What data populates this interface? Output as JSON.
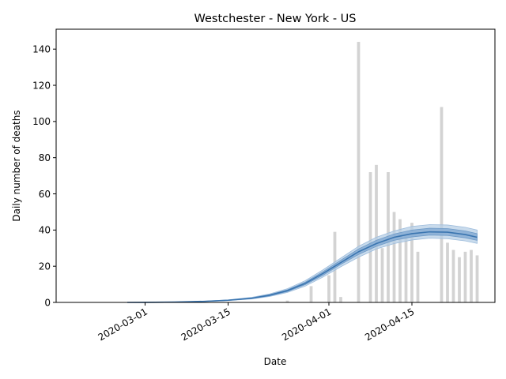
{
  "chart_data": {
    "type": "bar",
    "title": "Westchester - New York - US",
    "xlabel": "Date",
    "ylabel": "Daily number of deaths",
    "x_start": "2020-02-15",
    "x_end": "2020-04-29",
    "ylim": [
      0,
      151
    ],
    "yticks": [
      0,
      20,
      40,
      60,
      80,
      100,
      120,
      140
    ],
    "xticks": [
      "2020-03-01",
      "2020-03-15",
      "2020-04-01",
      "2020-04-15"
    ],
    "grid": false,
    "bars": [
      {
        "date": "2020-03-25",
        "value": 1
      },
      {
        "date": "2020-03-29",
        "value": 9
      },
      {
        "date": "2020-04-01",
        "value": 15
      },
      {
        "date": "2020-04-02",
        "value": 39
      },
      {
        "date": "2020-04-03",
        "value": 3
      },
      {
        "date": "2020-04-06",
        "value": 144
      },
      {
        "date": "2020-04-08",
        "value": 72
      },
      {
        "date": "2020-04-09",
        "value": 76
      },
      {
        "date": "2020-04-10",
        "value": 30
      },
      {
        "date": "2020-04-11",
        "value": 72
      },
      {
        "date": "2020-04-12",
        "value": 50
      },
      {
        "date": "2020-04-13",
        "value": 46
      },
      {
        "date": "2020-04-14",
        "value": 36
      },
      {
        "date": "2020-04-15",
        "value": 44
      },
      {
        "date": "2020-04-16",
        "value": 28
      },
      {
        "date": "2020-04-20",
        "value": 108
      },
      {
        "date": "2020-04-21",
        "value": 33
      },
      {
        "date": "2020-04-22",
        "value": 29
      },
      {
        "date": "2020-04-23",
        "value": 25
      },
      {
        "date": "2020-04-24",
        "value": 28
      },
      {
        "date": "2020-04-25",
        "value": 29
      },
      {
        "date": "2020-04-26",
        "value": 26
      }
    ],
    "fit_curve": {
      "color": "#3a75b0",
      "points": [
        {
          "date": "2020-02-27",
          "mid": 0,
          "inner_lo": 0,
          "inner_hi": 0,
          "outer_lo": 0,
          "outer_hi": 0
        },
        {
          "date": "2020-03-01",
          "mid": 0.05,
          "inner_lo": 0.05,
          "inner_hi": 0.05,
          "outer_lo": 0.04,
          "outer_hi": 0.06
        },
        {
          "date": "2020-03-06",
          "mid": 0.2,
          "inner_lo": 0.2,
          "inner_hi": 0.2,
          "outer_lo": 0.15,
          "outer_hi": 0.25
        },
        {
          "date": "2020-03-11",
          "mid": 0.6,
          "inner_lo": 0.55,
          "inner_hi": 0.65,
          "outer_lo": 0.5,
          "outer_hi": 0.7
        },
        {
          "date": "2020-03-15",
          "mid": 1.2,
          "inner_lo": 1.1,
          "inner_hi": 1.3,
          "outer_lo": 1.0,
          "outer_hi": 1.4
        },
        {
          "date": "2020-03-19",
          "mid": 2.3,
          "inner_lo": 2.1,
          "inner_hi": 2.5,
          "outer_lo": 1.9,
          "outer_hi": 2.8
        },
        {
          "date": "2020-03-22",
          "mid": 4,
          "inner_lo": 3.6,
          "inner_hi": 4.3,
          "outer_lo": 3.3,
          "outer_hi": 4.7
        },
        {
          "date": "2020-03-25",
          "mid": 6.5,
          "inner_lo": 6,
          "inner_hi": 7,
          "outer_lo": 5.5,
          "outer_hi": 7.6
        },
        {
          "date": "2020-03-28",
          "mid": 10.5,
          "inner_lo": 9.8,
          "inner_hi": 11.2,
          "outer_lo": 9,
          "outer_hi": 12
        },
        {
          "date": "2020-03-31",
          "mid": 16,
          "inner_lo": 15,
          "inner_hi": 17,
          "outer_lo": 14,
          "outer_hi": 18
        },
        {
          "date": "2020-04-03",
          "mid": 22,
          "inner_lo": 21,
          "inner_hi": 23.3,
          "outer_lo": 19.7,
          "outer_hi": 24.5
        },
        {
          "date": "2020-04-06",
          "mid": 28,
          "inner_lo": 26.5,
          "inner_hi": 29.5,
          "outer_lo": 25,
          "outer_hi": 31
        },
        {
          "date": "2020-04-09",
          "mid": 32.5,
          "inner_lo": 31,
          "inner_hi": 34.3,
          "outer_lo": 29.5,
          "outer_hi": 36
        },
        {
          "date": "2020-04-12",
          "mid": 36,
          "inner_lo": 34.3,
          "inner_hi": 37.8,
          "outer_lo": 32.5,
          "outer_hi": 39.5
        },
        {
          "date": "2020-04-15",
          "mid": 38,
          "inner_lo": 36.2,
          "inner_hi": 40,
          "outer_lo": 34.5,
          "outer_hi": 42
        },
        {
          "date": "2020-04-18",
          "mid": 39,
          "inner_lo": 37.2,
          "inner_hi": 41,
          "outer_lo": 35.5,
          "outer_hi": 43
        },
        {
          "date": "2020-04-21",
          "mid": 38.8,
          "inner_lo": 37,
          "inner_hi": 40.8,
          "outer_lo": 35.2,
          "outer_hi": 42.8
        },
        {
          "date": "2020-04-24",
          "mid": 37.5,
          "inner_lo": 35.7,
          "inner_hi": 39.5,
          "outer_lo": 34,
          "outer_hi": 41.5
        },
        {
          "date": "2020-04-26",
          "mid": 36,
          "inner_lo": 34.3,
          "inner_hi": 38,
          "outer_lo": 32.6,
          "outer_hi": 40
        }
      ]
    },
    "colors": {
      "bar": "#d3d3d3",
      "band_outer": "#b7cfe6",
      "band_inner": "#86acd4",
      "line": "#3a75b0"
    }
  }
}
